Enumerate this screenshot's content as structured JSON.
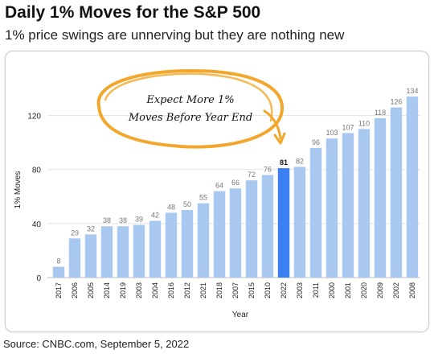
{
  "header": {
    "title": "Daily 1% Moves for the S&P 500",
    "subtitle": "1% price swings are unnerving but they are nothing new"
  },
  "footer": {
    "source": "Source: CNBC.com, September 5, 2022"
  },
  "annotation": {
    "line1": "Expect More 1%",
    "line2": "Moves Before Year End",
    "color": "#f2a72c"
  },
  "colors": {
    "bar": "#a9c8ef",
    "highlight_bar": "#3c7ff0",
    "grid": "#e3e3e3",
    "label": "#777777"
  },
  "chart_data": {
    "type": "bar",
    "xlabel": "Year",
    "ylabel": "1% Moves",
    "ylim": [
      0,
      140
    ],
    "yticks": [
      0,
      40,
      80,
      120
    ],
    "grid": true,
    "highlight_category": "2022",
    "categories": [
      "2017",
      "2006",
      "2005",
      "2014",
      "2019",
      "2003",
      "2004",
      "2016",
      "2012",
      "2021",
      "2018",
      "2007",
      "2015",
      "2010",
      "2022",
      "2003",
      "2011",
      "2000",
      "2001",
      "2020",
      "2009",
      "2002",
      "2008"
    ],
    "values": [
      8,
      29,
      32,
      38,
      38,
      39,
      42,
      48,
      50,
      55,
      64,
      66,
      72,
      76,
      81,
      82,
      96,
      103,
      107,
      110,
      118,
      126,
      134
    ]
  }
}
